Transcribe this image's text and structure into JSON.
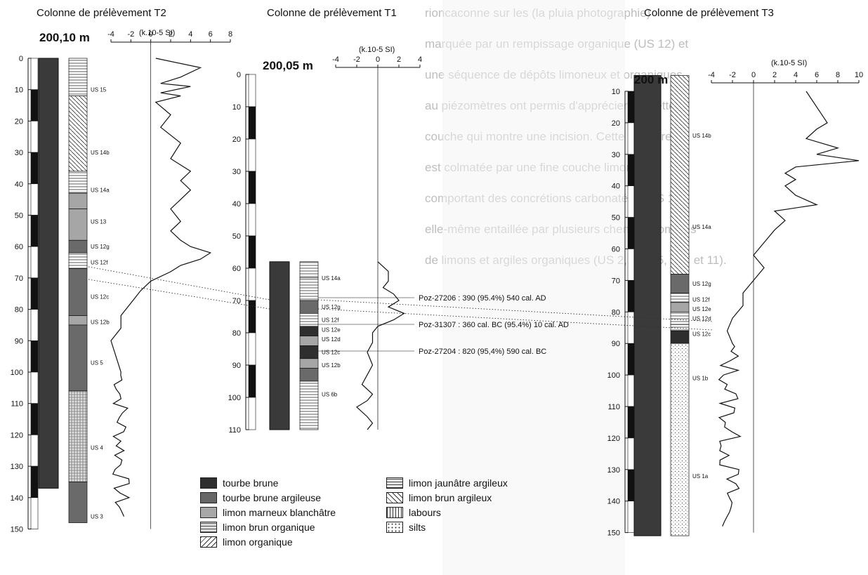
{
  "columns": [
    {
      "id": "T2",
      "title": "Colonne de prélèvement T2",
      "altitude": "200,10 m",
      "unit": "(k.10-5 SI)",
      "x_ticks": [
        "-4",
        "-2",
        "0",
        "2",
        "4",
        "6",
        "8"
      ],
      "x_values": [
        -4,
        -2,
        0,
        2,
        4,
        6,
        8
      ],
      "depth_ticks": [
        "0",
        "10",
        "20",
        "30",
        "40",
        "50",
        "60",
        "70",
        "80",
        "90",
        "100",
        "110",
        "120",
        "130",
        "140",
        "150"
      ],
      "units": [
        "US 15",
        "US 14b",
        "US 14a",
        "US 13",
        "US 12g",
        "US 12f",
        "US 12c",
        "US 12b",
        "US 5",
        "US 4",
        "US 3"
      ]
    },
    {
      "id": "T1",
      "title": "Colonne de prélèvement T1",
      "altitude": "200,05 m",
      "unit": "(k.10-5 SI)",
      "x_ticks": [
        "-4",
        "-2",
        "0",
        "2",
        "4"
      ],
      "x_values": [
        -4,
        -2,
        0,
        2,
        4
      ],
      "depth_ticks": [
        "0",
        "10",
        "20",
        "30",
        "40",
        "50",
        "60",
        "70",
        "80",
        "90",
        "100",
        "110"
      ],
      "units": [
        "US 14a",
        "US 12g",
        "US 12f",
        "US 12e",
        "US 12d",
        "US 12c",
        "US 12b",
        "US 6b"
      ]
    },
    {
      "id": "T3",
      "title": "Colonne de prélèvement T3",
      "altitude": "200 m",
      "unit": "(k.10-5 SI)",
      "x_ticks": [
        "-4",
        "-2",
        "0",
        "2",
        "4",
        "6",
        "8",
        "10"
      ],
      "x_values": [
        -4,
        -2,
        0,
        2,
        4,
        6,
        8,
        10
      ],
      "depth_ticks": [
        "10",
        "20",
        "30",
        "40",
        "50",
        "60",
        "70",
        "80",
        "90",
        "100",
        "110",
        "120",
        "130",
        "140",
        "150"
      ],
      "units": [
        "US 14b",
        "US 14a",
        "US 12g",
        "US 12f",
        "US 12e",
        "US 12d",
        "US 12c",
        "US 1b",
        "US 1a"
      ]
    }
  ],
  "dates": [
    "Poz-27206 : 390 (95.4%) 540 cal. AD",
    "Poz-31307 : 360 cal. BC (95.4%) 10 cal. AD",
    "Poz-27204 : 820 (95,4%) 590 cal. BC"
  ],
  "legend": [
    {
      "label": "tourbe brune",
      "pattern": "dark"
    },
    {
      "label": "tourbe brune argileuse",
      "pattern": "mid"
    },
    {
      "label": "limon marneux blanchâtre",
      "pattern": "light"
    },
    {
      "label": "limon brun organique",
      "pattern": "grid"
    },
    {
      "label": "limon organique",
      "pattern": "diag-fwd"
    },
    {
      "label": "limon jaunâtre argileux",
      "pattern": "hlines"
    },
    {
      "label": "limon brun argileux",
      "pattern": "diag-back"
    },
    {
      "label": "labours",
      "pattern": "vlines"
    },
    {
      "label": "silts",
      "pattern": "dots"
    }
  ],
  "background_text": [
    "rioncaconne sur les (la pluia photographie)",
    "marquée par un rempissage organique (US 12) et",
    "une séquence de dépôts limoneux et organiques",
    "au piézomètres ont permis d'apprécier les cette",
    "couche qui montre une incision. Cette dernière",
    "est colmatée par une fine couche limoneuse",
    "comportant des concrétions carbonatées (US 11),",
    "elle-même entaillée par plusieurs chenaux comblés",
    "de limons et argiles organiques (US 2, 3, 4, 5, 6, 7 et 11)."
  ]
}
